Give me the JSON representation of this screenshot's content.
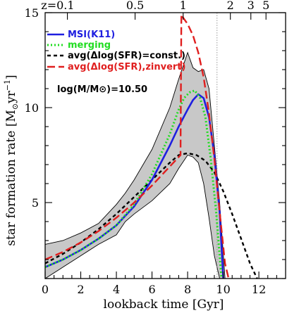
{
  "chart_data": {
    "type": "line",
    "xlabel": "lookback time [Gyr]",
    "ylabel": "star formation rate [M",
    "ylabel_sub": "⊙",
    "ylabel_tail": "yr",
    "ylabel_sup": "−1",
    "ylabel_close": "]",
    "xlim": [
      0,
      13.5
    ],
    "ylim": [
      1,
      15
    ],
    "x_ticks": [
      "0",
      "2",
      "4",
      "6",
      "8",
      "10",
      "12"
    ],
    "y_ticks": [
      "5",
      "10",
      "15"
    ],
    "top_axis_labels": [
      "z=0.1",
      "0.5",
      "1",
      "2",
      "3",
      "5"
    ],
    "top_axis_lookback": [
      1.25,
      5.05,
      7.75,
      10.4,
      11.55,
      12.4
    ],
    "vline_x": 9.65,
    "annotation": "log(M/M⊙)=10.50",
    "legend": [
      {
        "label": "MSI(K11)",
        "color": "#1f1fe0"
      },
      {
        "label": "merging",
        "color": "#22dd22"
      },
      {
        "label": "avg(Δlog(SFR)=const.)",
        "color": "#000000"
      },
      {
        "label": "avg(Δlog(SFR),zinvert)",
        "color": "#e01f1f"
      }
    ],
    "band": {
      "x": [
        0,
        1,
        2,
        3,
        4,
        4.5,
        5,
        6,
        7,
        7.5,
        8,
        8.3,
        8.6,
        8.9,
        9.2,
        9.5,
        9.8,
        10.1
      ],
      "upper": [
        2.8,
        3.0,
        3.4,
        3.9,
        4.9,
        5.5,
        6.2,
        7.8,
        10.0,
        11.5,
        12.9,
        12.1,
        11.9,
        12.0,
        11.0,
        8.0,
        5.0,
        1.0
      ],
      "lower": [
        1.0,
        1.6,
        2.2,
        2.8,
        3.3,
        4.0,
        4.4,
        5.1,
        6.0,
        6.8,
        7.5,
        7.4,
        7.1,
        6.0,
        4.2,
        2.2,
        1.0,
        1.0
      ]
    },
    "series": [
      {
        "name": "MSI(K11)",
        "color": "#1f1fe0",
        "dash": "none",
        "width": 2.6,
        "x": [
          0,
          1,
          2,
          3,
          4,
          5,
          6,
          7,
          7.5,
          8,
          8.3,
          8.6,
          8.9,
          9.2,
          9.5,
          9.8,
          10.0
        ],
        "y": [
          1.6,
          2.0,
          2.5,
          3.1,
          3.8,
          4.8,
          6.2,
          8.0,
          9.0,
          9.9,
          10.4,
          10.7,
          10.5,
          9.5,
          7.5,
          4.5,
          1.0
        ]
      },
      {
        "name": "merging",
        "color": "#22dd22",
        "dash": "2,3",
        "width": 3,
        "x": [
          0,
          1,
          2,
          3,
          4,
          5,
          6,
          7,
          7.5,
          7.8,
          8.1,
          8.4,
          8.7,
          9.0,
          9.3,
          9.6,
          9.9
        ],
        "y": [
          1.6,
          2.0,
          2.5,
          3.1,
          3.8,
          4.9,
          6.5,
          8.6,
          9.9,
          10.5,
          10.8,
          10.9,
          10.5,
          9.5,
          7.3,
          4.5,
          1.0
        ]
      },
      {
        "name": "avg(Δlog(SFR)=const.)",
        "color": "#000000",
        "dash": "5,4",
        "width": 2.4,
        "x": [
          0,
          1,
          2,
          3,
          4,
          5,
          6,
          7,
          7.5,
          8,
          8.5,
          9,
          9.5,
          10,
          10.5,
          11,
          11.5,
          11.9
        ],
        "y": [
          1.8,
          2.3,
          2.9,
          3.6,
          4.4,
          5.3,
          6.2,
          7.1,
          7.5,
          7.6,
          7.5,
          7.2,
          6.6,
          5.6,
          4.4,
          3.1,
          1.8,
          1.0
        ]
      },
      {
        "name": "avg(Δlog(SFR),zinvert)",
        "color": "#e01f1f",
        "dash": "11,5",
        "width": 2.4,
        "x": [
          0,
          1,
          2,
          3,
          4,
          5,
          6,
          7,
          7.6,
          7.65,
          7.7,
          8.0,
          8.3,
          8.6,
          8.9,
          9.2,
          9.5,
          9.8,
          10.1,
          10.3
        ],
        "y": [
          2.0,
          2.4,
          2.9,
          3.5,
          4.2,
          5.0,
          5.9,
          6.9,
          7.5,
          14.9,
          14.8,
          14.4,
          13.8,
          12.9,
          11.6,
          9.7,
          7.3,
          4.5,
          1.8,
          1.0
        ]
      }
    ]
  }
}
